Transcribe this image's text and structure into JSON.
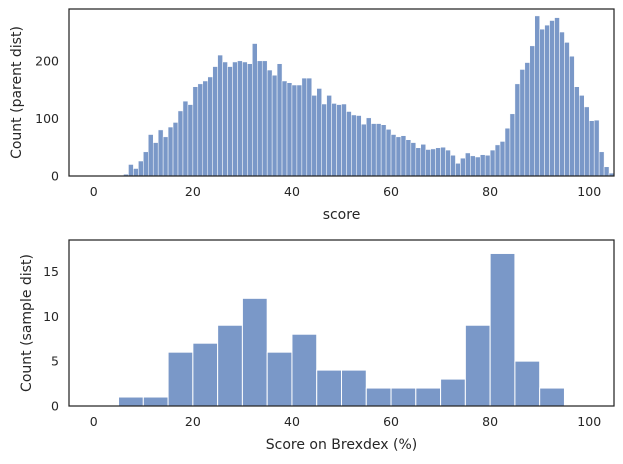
{
  "style": {
    "bar_fill": "#7a98c8",
    "bar_edge": "#ffffff",
    "axis_color": "#262626",
    "background": "#ffffff"
  },
  "chart_data": [
    {
      "type": "histogram",
      "xlabel": "score",
      "ylabel": "Count (parent dist)",
      "xlim": [
        -5,
        105
      ],
      "ylim": [
        0,
        290
      ],
      "xticks": [
        0,
        20,
        40,
        60,
        80,
        100
      ],
      "yticks": [
        0,
        100,
        200
      ],
      "grid": false,
      "bin_start": 6,
      "bin_width": 1,
      "counts": [
        3,
        20,
        13,
        26,
        42,
        72,
        58,
        80,
        68,
        85,
        93,
        113,
        130,
        124,
        155,
        160,
        165,
        172,
        190,
        210,
        198,
        190,
        198,
        200,
        198,
        195,
        230,
        200,
        200,
        184,
        175,
        195,
        165,
        162,
        158,
        158,
        170,
        170,
        140,
        152,
        125,
        140,
        126,
        124,
        125,
        112,
        106,
        105,
        90,
        101,
        91,
        91,
        89,
        81,
        72,
        68,
        70,
        63,
        58,
        49,
        55,
        46,
        47,
        49,
        50,
        45,
        36,
        22,
        31,
        40,
        35,
        33,
        37,
        36,
        45,
        54,
        60,
        83,
        108,
        160,
        185,
        197,
        226,
        278,
        255,
        262,
        270,
        275,
        250,
        232,
        208,
        155,
        140,
        120,
        96,
        97,
        42,
        16,
        5
      ]
    },
    {
      "type": "histogram",
      "xlabel": "Score on Brexdex (%)",
      "ylabel": "Count (sample dist)",
      "xlim": [
        -5,
        105
      ],
      "ylim": [
        0,
        18.5
      ],
      "xticks": [
        0,
        20,
        40,
        60,
        80,
        100
      ],
      "yticks": [
        0,
        5,
        10,
        15
      ],
      "grid": false,
      "bin_start": 5,
      "bin_width": 5,
      "counts": [
        1,
        1,
        6,
        7,
        9,
        12,
        6,
        8,
        4,
        4,
        2,
        2,
        2,
        3,
        9,
        17,
        5,
        2
      ]
    }
  ]
}
